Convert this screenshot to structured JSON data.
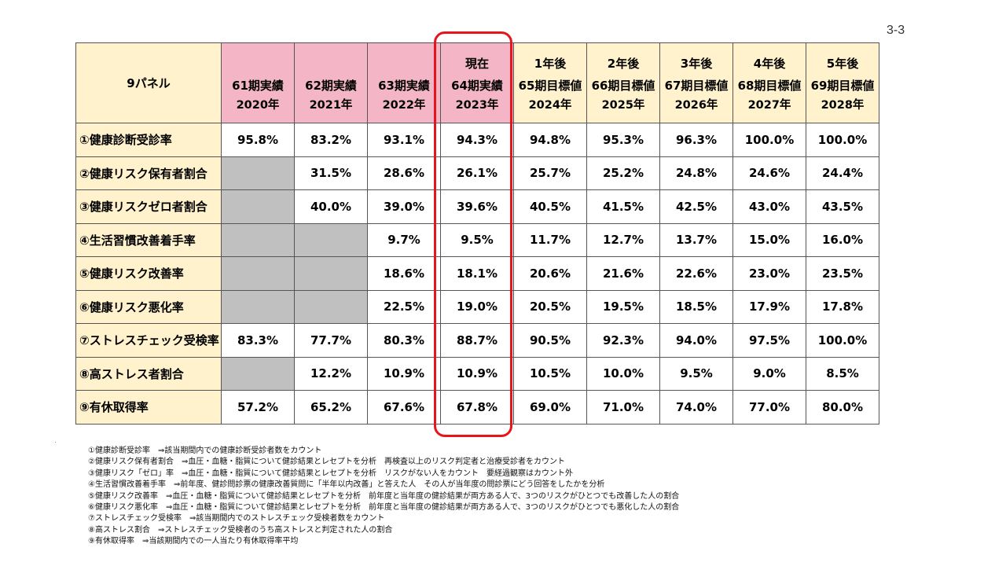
{
  "page_number": "3-3",
  "table": {
    "corner_label": "9パネル",
    "columns": [
      {
        "top": "",
        "period": "61期実績",
        "year": "2020年",
        "kind": "past"
      },
      {
        "top": "",
        "period": "62期実績",
        "year": "2021年",
        "kind": "past"
      },
      {
        "top": "",
        "period": "63期実績",
        "year": "2022年",
        "kind": "past"
      },
      {
        "top": "現在",
        "period": "64期実績",
        "year": "2023年",
        "kind": "past"
      },
      {
        "top": "1年後",
        "period": "65期目標値",
        "year": "2024年",
        "kind": "target"
      },
      {
        "top": "2年後",
        "period": "66期目標値",
        "year": "2025年",
        "kind": "target"
      },
      {
        "top": "3年後",
        "period": "67期目標値",
        "year": "2026年",
        "kind": "target"
      },
      {
        "top": "4年後",
        "period": "68期目標値",
        "year": "2027年",
        "kind": "target"
      },
      {
        "top": "5年後",
        "period": "69期目標値",
        "year": "2028年",
        "kind": "target"
      }
    ],
    "rows": [
      {
        "label": "①健康診断受診率",
        "values": [
          "95.8%",
          "83.2%",
          "93.1%",
          "94.3%",
          "94.8%",
          "95.3%",
          "96.3%",
          "100.0%",
          "100.0%"
        ]
      },
      {
        "label": "②健康リスク保有者割合",
        "values": [
          null,
          "31.5%",
          "28.6%",
          "26.1%",
          "25.7%",
          "25.2%",
          "24.8%",
          "24.6%",
          "24.4%"
        ]
      },
      {
        "label": "③健康リスクゼロ者割合",
        "values": [
          null,
          "40.0%",
          "39.0%",
          "39.6%",
          "40.5%",
          "41.5%",
          "42.5%",
          "43.0%",
          "43.5%"
        ]
      },
      {
        "label": "④生活習慣改善着手率",
        "values": [
          null,
          null,
          "9.7%",
          "9.5%",
          "11.7%",
          "12.7%",
          "13.7%",
          "15.0%",
          "16.0%"
        ]
      },
      {
        "label": "⑤健康リスク改善率",
        "values": [
          null,
          null,
          "18.6%",
          "18.1%",
          "20.6%",
          "21.6%",
          "22.6%",
          "23.0%",
          "23.5%"
        ]
      },
      {
        "label": "⑥健康リスク悪化率",
        "values": [
          null,
          null,
          "22.5%",
          "19.0%",
          "20.5%",
          "19.5%",
          "18.5%",
          "17.9%",
          "17.8%"
        ]
      },
      {
        "label": "⑦ストレスチェック受検率",
        "values": [
          "83.3%",
          "77.7%",
          "80.3%",
          "88.7%",
          "90.5%",
          "92.3%",
          "94.0%",
          "97.5%",
          "100.0%"
        ]
      },
      {
        "label": "⑧高ストレス者割合",
        "values": [
          null,
          "12.2%",
          "10.9%",
          "10.9%",
          "10.5%",
          "10.0%",
          "9.5%",
          "9.0%",
          "8.5%"
        ]
      },
      {
        "label": "⑨有休取得率",
        "values": [
          "57.2%",
          "65.2%",
          "67.6%",
          "67.8%",
          "69.0%",
          "71.0%",
          "74.0%",
          "77.0%",
          "80.0%"
        ]
      }
    ]
  },
  "notes": [
    "①健康診断受診率　⇒該当期間内での健康診断受診者数をカウント",
    "②健康リスク保有者割合　⇒血圧・血糖・脂質について健診結果とレセプトを分析　再検査以上のリスク判定者と治療受診者をカウント",
    "③健康リスク「ゼロ」率　⇒血圧・血糖・脂質について健診結果とレセプトを分析　リスクがない人をカウント　要経過観察はカウント外",
    "④生活習慣改善着手率　⇒前年度、健診問診票の健康改善質問に「半年以内改善」と答えた人　その人が当年度の問診票にどう回答をしたかを分析",
    "⑤健康リスク改善率　⇒血圧・血糖・脂質について健診結果とレセプトを分析　前年度と当年度の健診結果が両方ある人で、3つのリスクがひとつでも改善した人の割合",
    "⑥健康リスク悪化率　⇒血圧・血糖・脂質について健診結果とレセプトを分析　前年度と当年度の健診結果が両方ある人で、3つのリスクがひとつでも悪化した人の割合",
    "⑦ストレスチェック受検率　⇒該当期間内でのストレスチェック受検者数をカウント",
    "⑧高ストレス割合　⇒ストレスチェック受検者のうち高ストレスと判定された人の割合",
    "⑨有休取得率　⇒当該期間内での一人当たり有休取得率平均"
  ],
  "colors": {
    "header_bg": "#fff2cc",
    "past_header_bg": "#f4b6c6",
    "na_cell_bg": "#c0c0c0",
    "highlight_border": "#e8141b"
  }
}
